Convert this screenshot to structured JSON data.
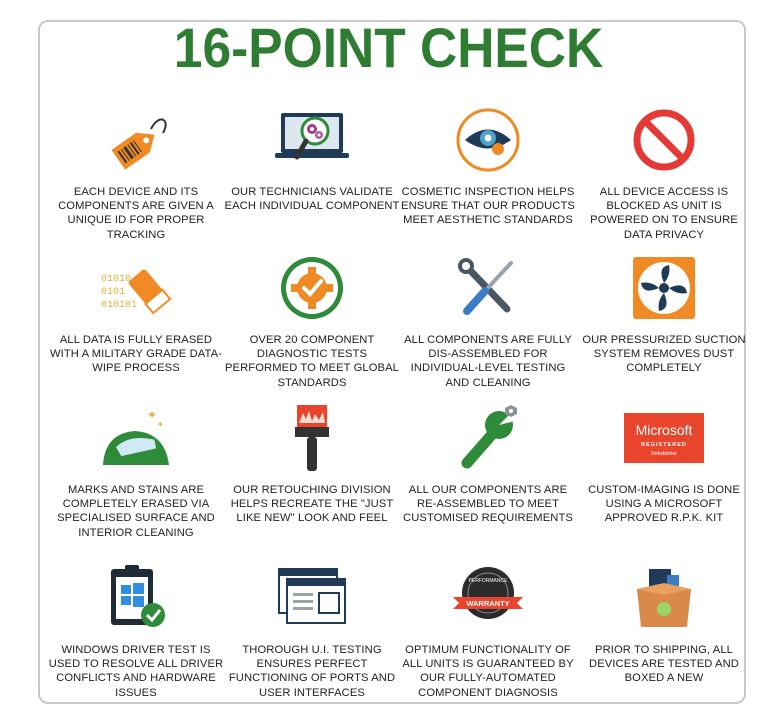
{
  "header": {
    "title": "16-POINT CHECK"
  },
  "items": [
    {
      "icon": "price-tag-icon",
      "text": "EACH DEVICE AND ITS COMPONENTS ARE GIVEN A UNIQUE ID FOR PROPER TRACKING"
    },
    {
      "icon": "laptop-magnifier-gears-icon",
      "text": "OUR TECHNICIANS VALIDATE EACH INDIVIDUAL COMPONENT"
    },
    {
      "icon": "eye-inspection-icon",
      "text": "COSMETIC INSPECTION HELPS ENSURE THAT OUR PRODUCTS MEET AESTHETIC STANDARDS"
    },
    {
      "icon": "blocked-icon",
      "text": "ALL DEVICE ACCESS IS BLOCKED AS UNIT IS POWERED ON TO ENSURE DATA PRIVACY"
    },
    {
      "icon": "eraser-binary-icon",
      "text": "ALL DATA IS FULLY ERASED WITH A MILITARY GRADE DATA-WIPE PROCESS",
      "binary": [
        "01010",
        "0101",
        "010101"
      ]
    },
    {
      "icon": "gear-check-icon",
      "text": "OVER 20 COMPONENT DIAGNOSTIC TESTS PERFORMED TO MEET GLOBAL STANDARDS"
    },
    {
      "icon": "wrench-screwdriver-icon",
      "text": "ALL COMPONENTS ARE FULLY DIS-ASSEMBLED FOR INDIVIDUAL-LEVEL TESTING AND CLEANING"
    },
    {
      "icon": "fan-icon",
      "text": "OUR PRESSURIZED SUCTION SYSTEM REMOVES DUST COMPLETELY"
    },
    {
      "icon": "hand-cleaning-icon",
      "text": "MARKS AND STAINS ARE COMPLETELY ERASED VIA SPECIALISED SURFACE AND INTERIOR CLEANING"
    },
    {
      "icon": "paintbrush-icon",
      "text": "OUR RETOUCHING DIVISION HELPS RECREATE THE \"JUST LIKE NEW\" LOOK AND FEEL"
    },
    {
      "icon": "wrench-bolt-icon",
      "text": "ALL OUR COMPONENTS ARE RE-ASSEMBLED TO MEET CUSTOMISED REQUIREMENTS"
    },
    {
      "icon": "microsoft-registered-logo-icon",
      "text": "CUSTOM-IMAGING IS DONE USING A MICROSOFT APPROVED R.P.K. KIT",
      "logo": [
        "Microsoft",
        "REGISTERED",
        "Refurbisher"
      ]
    },
    {
      "icon": "clipboard-windows-check-icon",
      "text": "WINDOWS DRIVER TEST IS USED TO RESOLVE ALL DRIVER CONFLICTS AND HARDWARE ISSUES"
    },
    {
      "icon": "browser-windows-icon",
      "text": "THOROUGH U.I. TESTING ENSURES PERFECT FUNCTIONING OF PORTS AND USER INTERFACES"
    },
    {
      "icon": "warranty-badge-icon",
      "text": "OPTIMUM FUNCTIONALITY OF ALL UNITS IS GUARANTEED BY OUR FULLY-AUTOMATED COMPONENT DIAGNOSIS",
      "badge": [
        "PERFORMANCE",
        "WARRANTY"
      ]
    },
    {
      "icon": "shipping-box-icon",
      "text": "PRIOR TO SHIPPING, ALL DEVICES ARE TESTED AND BOXED A NEW"
    }
  ],
  "colors": {
    "title": "#2e7d32",
    "green": "#2e8b3a",
    "orange": "#f08a24",
    "red": "#e53935",
    "navy": "#1f3b57"
  }
}
